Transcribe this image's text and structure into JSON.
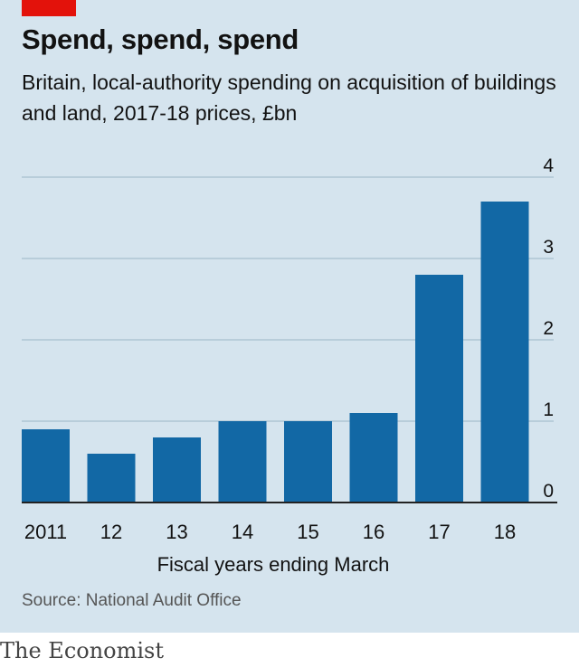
{
  "header": {
    "title": "Spend, spend, spend",
    "subtitle": "Britain, local-authority spending on acquisition of buildings and land, 2017-18 prices, £bn"
  },
  "footer": {
    "source": "Source: National Audit Office",
    "brand": "The Economist"
  },
  "colors": {
    "bar": "#1268a5",
    "background": "#d5e4ee",
    "gridline": "#a8bfcf",
    "baseline": "#222222",
    "accent": "#e3120b"
  },
  "chart_data": {
    "type": "bar",
    "title": "Spend, spend, spend",
    "subtitle": "Britain, local-authority spending on acquisition of buildings and land, 2017-18 prices, £bn",
    "xlabel": "Fiscal years ending March",
    "ylabel": "",
    "categories": [
      "2011",
      "12",
      "13",
      "14",
      "15",
      "16",
      "17",
      "18"
    ],
    "values": [
      0.9,
      0.6,
      0.8,
      1.0,
      1.0,
      1.1,
      2.8,
      3.7
    ],
    "ylim": [
      0,
      4
    ],
    "yticks": [
      "0",
      "1",
      "2",
      "3",
      "4"
    ],
    "ytick_side": "right",
    "grid": true
  }
}
